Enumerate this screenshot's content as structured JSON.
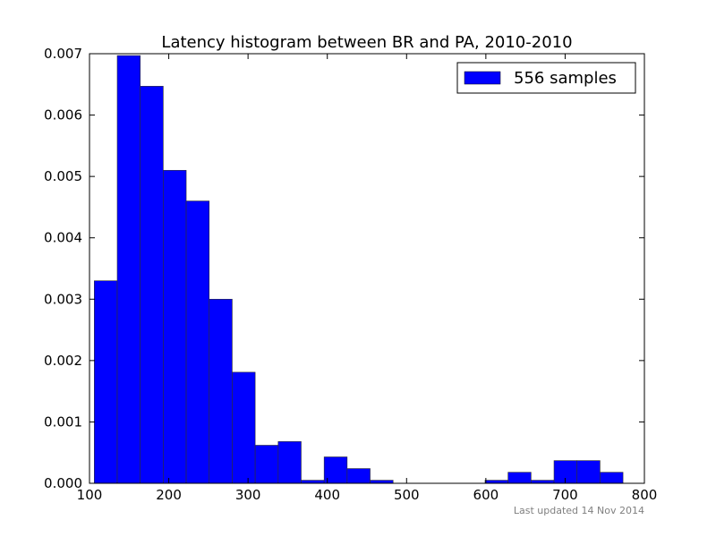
{
  "footer": {
    "updated": "Last updated 14 Nov 2014"
  },
  "colors": {
    "bar": "#0000ff",
    "edge": "#303030",
    "footer": "#808080",
    "axis": "#000000"
  },
  "chart_data": {
    "type": "bar",
    "title": "Latency histogram between BR and PA, 2010-2010",
    "xlabel": "",
    "ylabel": "",
    "xlim": [
      100,
      800
    ],
    "ylim": [
      0,
      0.007
    ],
    "x_ticks": [
      100,
      200,
      300,
      400,
      500,
      600,
      700,
      800
    ],
    "y_ticks": [
      0.0,
      0.001,
      0.002,
      0.003,
      0.004,
      0.005,
      0.006,
      0.007
    ],
    "y_tick_labels": [
      "0.000",
      "0.001",
      "0.002",
      "0.003",
      "0.004",
      "0.005",
      "0.006",
      "0.007"
    ],
    "grid": false,
    "legend": {
      "position": "top-right",
      "entries": [
        "556 samples"
      ]
    },
    "series": [
      {
        "name": "556 samples",
        "bins": [
          {
            "x0": 106,
            "x1": 135,
            "density": 0.0033
          },
          {
            "x0": 135,
            "x1": 164,
            "density": 0.00697
          },
          {
            "x0": 164,
            "x1": 193,
            "density": 0.00647
          },
          {
            "x0": 193,
            "x1": 222,
            "density": 0.0051
          },
          {
            "x0": 222,
            "x1": 251,
            "density": 0.0046
          },
          {
            "x0": 251,
            "x1": 280,
            "density": 0.003
          },
          {
            "x0": 280,
            "x1": 309,
            "density": 0.00181
          },
          {
            "x0": 309,
            "x1": 338,
            "density": 0.00062
          },
          {
            "x0": 338,
            "x1": 367,
            "density": 0.00068
          },
          {
            "x0": 367,
            "x1": 396,
            "density": 5e-05
          },
          {
            "x0": 396,
            "x1": 425,
            "density": 0.00043
          },
          {
            "x0": 425,
            "x1": 454,
            "density": 0.00024
          },
          {
            "x0": 454,
            "x1": 483,
            "density": 5e-05
          },
          {
            "x0": 483,
            "x1": 512,
            "density": 0
          },
          {
            "x0": 512,
            "x1": 541,
            "density": 0
          },
          {
            "x0": 541,
            "x1": 570,
            "density": 0
          },
          {
            "x0": 570,
            "x1": 599,
            "density": 0
          },
          {
            "x0": 599,
            "x1": 628,
            "density": 5e-05
          },
          {
            "x0": 628,
            "x1": 657,
            "density": 0.00018
          },
          {
            "x0": 657,
            "x1": 686,
            "density": 5e-05
          },
          {
            "x0": 686,
            "x1": 715,
            "density": 0.00037
          },
          {
            "x0": 715,
            "x1": 744,
            "density": 0.00037
          },
          {
            "x0": 744,
            "x1": 773,
            "density": 0.00018
          }
        ]
      }
    ]
  }
}
